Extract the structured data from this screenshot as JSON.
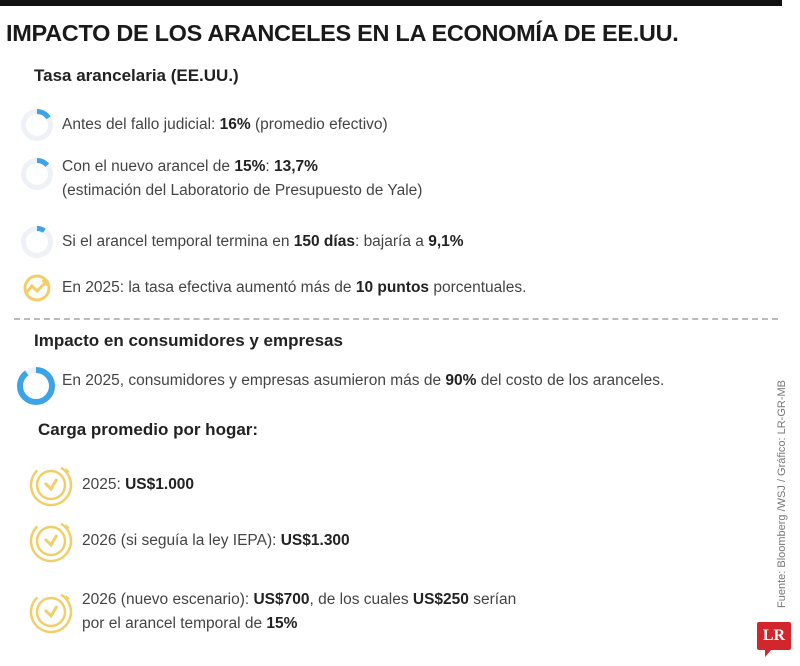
{
  "title": "IMPACTO DE LOS ARANCELES EN LA ECONOMÍA DE EE.UU.",
  "section1": {
    "heading": "Tasa arancelaria (EE.UU.)",
    "items": [
      {
        "icon": "donut-progress-icon",
        "progress_percent": 16,
        "pre": "Antes del fallo judicial: ",
        "b1": "16%",
        "post": " (promedio efectivo)"
      },
      {
        "icon": "donut-progress-icon",
        "progress_percent": 13.7,
        "pre": "Con el nuevo arancel de ",
        "b1": "15%",
        "mid": ": ",
        "b2": "13,7%",
        "line2": "(estimación del Laboratorio de Presupuesto de Yale)"
      },
      {
        "icon": "donut-progress-icon",
        "progress_percent": 9.1,
        "pre": "Si el arancel temporal termina en ",
        "b1": "150 días",
        "mid": ": bajaría a ",
        "b2": "9,1%"
      },
      {
        "icon": "rising-chart-icon",
        "pre": "En 2025: la tasa efectiva aumentó más de ",
        "b1": "10 puntos",
        "post": " porcentuales."
      }
    ]
  },
  "section2": {
    "heading": "Impacto en consumidores y empresas",
    "share": {
      "icon": "donut-progress-icon",
      "progress_percent": 90,
      "pre": "En 2025, consumidores y empresas asumieron más de ",
      "b1": "90%",
      "post": " del costo de los aranceles."
    },
    "subheading": "Carga promedio por hogar:",
    "items": [
      {
        "icon": "clock-icon",
        "pre": "2025: ",
        "b1": "US$1.000"
      },
      {
        "icon": "clock-icon",
        "pre": "2026 (si seguía la ley IEPA): ",
        "b1": "US$1.300"
      },
      {
        "icon": "clock-icon",
        "pre": "2026 (nuevo escenario): ",
        "b1": "US$700",
        "mid": ", de los cuales ",
        "b2": "US$250",
        "post": " serían",
        "line2_pre": "por el arancel temporal de ",
        "line2_b": "15%"
      }
    ]
  },
  "source": "Fuente: Bloomberg /WSJ / Gráfico: LR-GR-MB",
  "logo": "LR",
  "colors": {
    "accent_blue": "#3ba3e6",
    "ring_gray": "#eef1f5",
    "gold": "#f0cf6a",
    "logo_red": "#d3262c"
  }
}
